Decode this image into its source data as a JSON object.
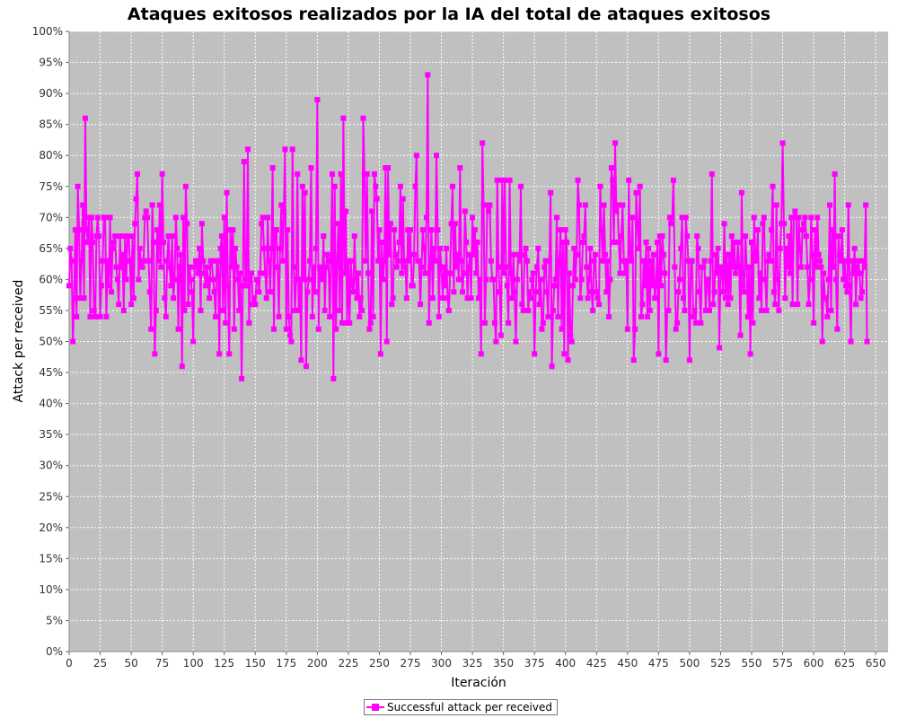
{
  "chart_data": {
    "type": "line",
    "title": "Ataques exitosos realizados por la IA del total de ataques exitosos",
    "xlabel": "Iteración",
    "ylabel": "Attack per received",
    "xlim": [
      0,
      660
    ],
    "ylim": [
      0,
      100
    ],
    "x_ticks": [
      "0",
      "25",
      "50",
      "75",
      "100",
      "125",
      "150",
      "175",
      "200",
      "225",
      "250",
      "275",
      "300",
      "325",
      "350",
      "375",
      "400",
      "425",
      "450",
      "475",
      "500",
      "525",
      "550",
      "575",
      "600",
      "625",
      "650"
    ],
    "y_ticks": [
      "0%",
      "5%",
      "10%",
      "15%",
      "20%",
      "25%",
      "30%",
      "35%",
      "40%",
      "45%",
      "50%",
      "55%",
      "60%",
      "65%",
      "70%",
      "75%",
      "80%",
      "85%",
      "90%",
      "95%",
      "100%"
    ],
    "grid": true,
    "legend_position": "bottom",
    "plot_background": "#c0c0c0",
    "series": [
      {
        "name": "Successful attack per received",
        "color": "#ff00ff",
        "marker": "square",
        "x_start": 0,
        "x_step": 1,
        "values": [
          59,
          65,
          63,
          50,
          57,
          68,
          54,
          75,
          68,
          57,
          63,
          72,
          57,
          86,
          68,
          66,
          70,
          54,
          70,
          66,
          55,
          54,
          67,
          70,
          67,
          54,
          59,
          63,
          70,
          70,
          54,
          63,
          59,
          70,
          58,
          65,
          66,
          67,
          62,
          60,
          56,
          67,
          62,
          64,
          55,
          67,
          60,
          67,
          67,
          63,
          56,
          67,
          57,
          69,
          73,
          77,
          60,
          65,
          62,
          62,
          63,
          70,
          71,
          70,
          63,
          58,
          52,
          72,
          66,
          48,
          55,
          68,
          63,
          72,
          62,
          77,
          66,
          57,
          54,
          63,
          67,
          62,
          59,
          67,
          57,
          60,
          70,
          65,
          52,
          62,
          64,
          46,
          70,
          55,
          75,
          69,
          56,
          62,
          60,
          58,
          50,
          62,
          63,
          63,
          61,
          65,
          55,
          69,
          63,
          61,
          59,
          62,
          60,
          57,
          63,
          63,
          60,
          58,
          54,
          63,
          63,
          48,
          65,
          67,
          55,
          70,
          53,
          74,
          59,
          48,
          68,
          62,
          68,
          52,
          65,
          62,
          60,
          55,
          61,
          44,
          59,
          79,
          60,
          59,
          81,
          53,
          61,
          61,
          56,
          57,
          56,
          60,
          60,
          58,
          61,
          69,
          70,
          65,
          61,
          57,
          70,
          63,
          58,
          65,
          78,
          52,
          68,
          68,
          62,
          54,
          65,
          72,
          63,
          71,
          81,
          52,
          68,
          54,
          51,
          50,
          81,
          62,
          55,
          60,
          77,
          55,
          60,
          47,
          75,
          60,
          74,
          46,
          58,
          60,
          63,
          78,
          54,
          62,
          58,
          65,
          89,
          52,
          62,
          61,
          60,
          67,
          55,
          62,
          64,
          63,
          54,
          63,
          77,
          44,
          75,
          52,
          63,
          69,
          55,
          77,
          53,
          86,
          61,
          71,
          53,
          63,
          53,
          63,
          59,
          58,
          67,
          60,
          57,
          61,
          54,
          57,
          55,
          86,
          77,
          63,
          77,
          61,
          52,
          53,
          71,
          54,
          77,
          75,
          73,
          63,
          68,
          48,
          66,
          60,
          63,
          78,
          50,
          78,
          64,
          69,
          56,
          57,
          68,
          64,
          62,
          63,
          66,
          75,
          61,
          73,
          63,
          62,
          57,
          68,
          63,
          68,
          59,
          59,
          64,
          75,
          80,
          63,
          63,
          56,
          62,
          68,
          65,
          61,
          70,
          93,
          53,
          62,
          68,
          57,
          65,
          63,
          80,
          68,
          54,
          65,
          62,
          57,
          62,
          59,
          65,
          57,
          55,
          61,
          69,
          75,
          58,
          69,
          62,
          64,
          60,
          78,
          63,
          58,
          61,
          71,
          66,
          57,
          62,
          64,
          57,
          70,
          64,
          68,
          61,
          66,
          57,
          60,
          48,
          82,
          72,
          53,
          60,
          72,
          71,
          72,
          63,
          60,
          60,
          53,
          50,
          76,
          62,
          58,
          51,
          76,
          61,
          76,
          62,
          59,
          53,
          76,
          61,
          57,
          64,
          58,
          50,
          60,
          64,
          63,
          75,
          56,
          55,
          64,
          65,
          63,
          55,
          58,
          57,
          60,
          61,
          48,
          58,
          62,
          65,
          56,
          60,
          52,
          53,
          62,
          63,
          58,
          54,
          63,
          74,
          46,
          55,
          59,
          60,
          70,
          54,
          63,
          68,
          52,
          66,
          48,
          68,
          66,
          47,
          61,
          51,
          50,
          59,
          65,
          60,
          64,
          76,
          72,
          57,
          60,
          66,
          67,
          72,
          62,
          57,
          60,
          65,
          58,
          55,
          63,
          64,
          58,
          57,
          56,
          75,
          68,
          63,
          72,
          64,
          58,
          63,
          54,
          60,
          78,
          76,
          66,
          82,
          71,
          72,
          66,
          61,
          67,
          72,
          63,
          61,
          63,
          52,
          76,
          64,
          63,
          70,
          47,
          52,
          74,
          69,
          65,
          75,
          54,
          56,
          63,
          59,
          66,
          54,
          65,
          55,
          63,
          59,
          64,
          57,
          59,
          66,
          48,
          67,
          59,
          67,
          64,
          61,
          47,
          55,
          55,
          70,
          69,
          70,
          76,
          62,
          52,
          53,
          58,
          60,
          65,
          70,
          57,
          55,
          70,
          67,
          63,
          47,
          63,
          63,
          54,
          55,
          53,
          67,
          65,
          58,
          53,
          62,
          62,
          63,
          55,
          60,
          60,
          55,
          63,
          77,
          56,
          58,
          64,
          61,
          65,
          49,
          62,
          62,
          58,
          69,
          57,
          64,
          56,
          64,
          57,
          67,
          62,
          66,
          61,
          62,
          66,
          62,
          51,
          74,
          59,
          58,
          67,
          62,
          54,
          62,
          48,
          66,
          53,
          70,
          64,
          63,
          68,
          57,
          61,
          55,
          69,
          70,
          60,
          55,
          63,
          64,
          63,
          68,
          75,
          58,
          56,
          72,
          60,
          55,
          65,
          69,
          82,
          69,
          57,
          65,
          62,
          67,
          61,
          70,
          56,
          70,
          71,
          70,
          56,
          70,
          65,
          62,
          68,
          69,
          70,
          67,
          62,
          56,
          60,
          70,
          64,
          53,
          68,
          62,
          70,
          64,
          63,
          62,
          50,
          61,
          57,
          57,
          54,
          60,
          72,
          55,
          68,
          62,
          77,
          60,
          52,
          67,
          64,
          63,
          68,
          60,
          63,
          59,
          58,
          72,
          59,
          50,
          63,
          61,
          65,
          56,
          62,
          63,
          61,
          57,
          58,
          63,
          62,
          72,
          50
        ]
      }
    ]
  }
}
